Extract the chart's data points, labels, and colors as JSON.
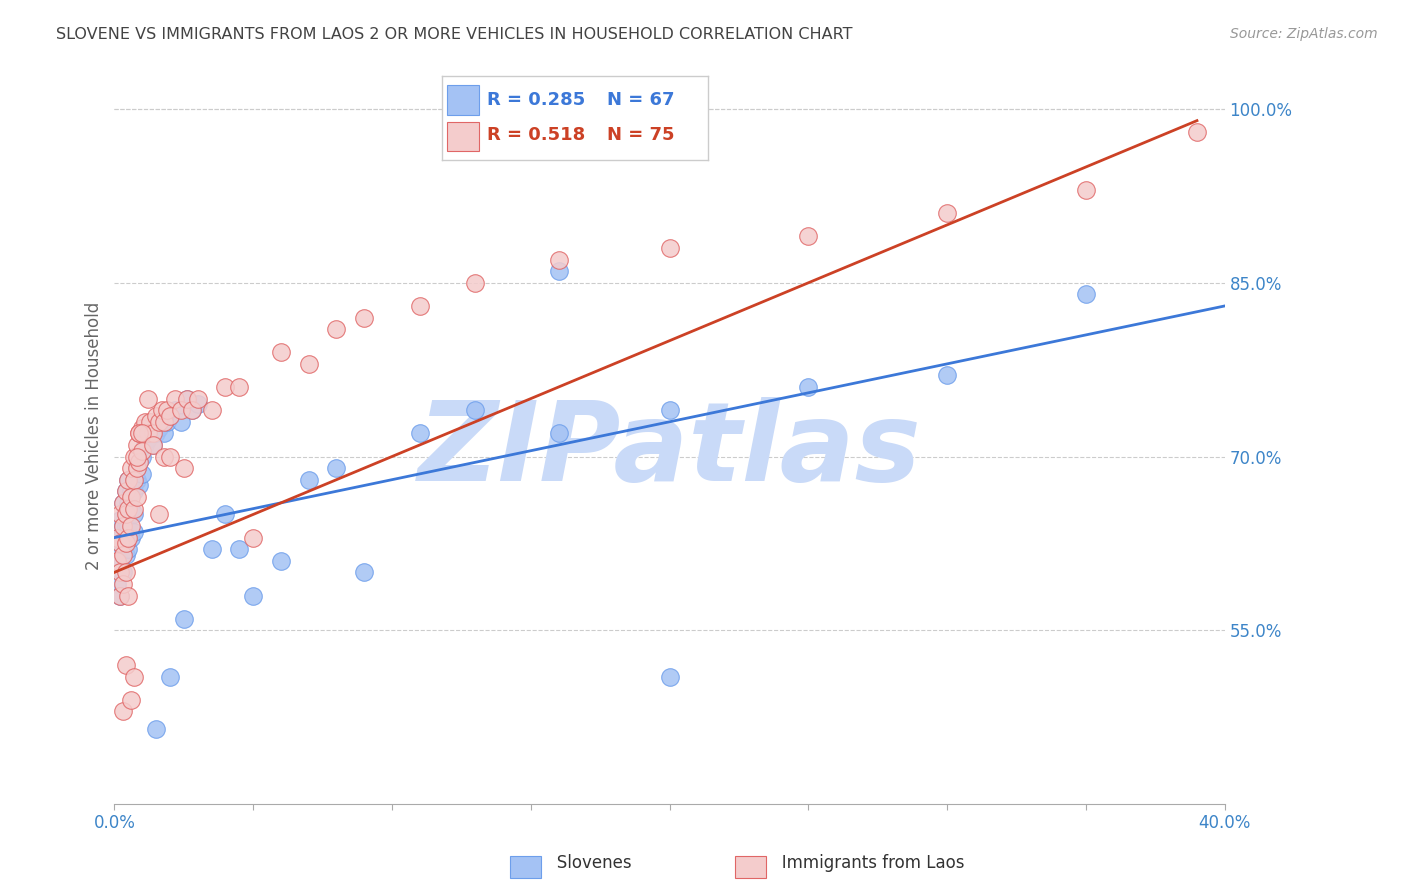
{
  "title": "SLOVENE VS IMMIGRANTS FROM LAOS 2 OR MORE VEHICLES IN HOUSEHOLD CORRELATION CHART",
  "source": "Source: ZipAtlas.com",
  "ylabel": "2 or more Vehicles in Household",
  "xlim": [
    0.0,
    0.4
  ],
  "ylim": [
    0.4,
    1.035
  ],
  "xticks": [
    0.0,
    0.05,
    0.1,
    0.15,
    0.2,
    0.25,
    0.3,
    0.35,
    0.4
  ],
  "xtick_labels": [
    "0.0%",
    "",
    "",
    "",
    "",
    "",
    "",
    "",
    "40.0%"
  ],
  "yticks_right": [
    0.55,
    0.7,
    0.85,
    1.0
  ],
  "ytick_labels_right": [
    "55.0%",
    "70.0%",
    "85.0%",
    "100.0%"
  ],
  "blue_color": "#a4c2f4",
  "pink_color": "#f4cccc",
  "blue_edge_color": "#6d9eeb",
  "pink_edge_color": "#e06666",
  "blue_line_color": "#3c78d8",
  "pink_line_color": "#cc4125",
  "watermark": "ZIPatlas",
  "watermark_color": "#c9daf8",
  "background_color": "#ffffff",
  "grid_color": "#cccccc",
  "title_color": "#434343",
  "axis_label_color": "#3d85c8",
  "legend_r_blue": "R = 0.285",
  "legend_n_blue": "N = 67",
  "legend_r_pink": "R = 0.518",
  "legend_n_pink": "N = 75",
  "blue_trendline": [
    0.0,
    0.4,
    0.63,
    0.83
  ],
  "pink_trendline": [
    0.0,
    0.39,
    0.6,
    0.99
  ],
  "slovenes_x": [
    0.001,
    0.001,
    0.001,
    0.002,
    0.002,
    0.002,
    0.002,
    0.003,
    0.003,
    0.003,
    0.003,
    0.004,
    0.004,
    0.004,
    0.004,
    0.005,
    0.005,
    0.005,
    0.005,
    0.006,
    0.006,
    0.006,
    0.007,
    0.007,
    0.007,
    0.007,
    0.008,
    0.008,
    0.009,
    0.009,
    0.01,
    0.01,
    0.011,
    0.012,
    0.013,
    0.014,
    0.015,
    0.016,
    0.017,
    0.018,
    0.019,
    0.02,
    0.022,
    0.024,
    0.026,
    0.028,
    0.03,
    0.035,
    0.04,
    0.045,
    0.05,
    0.06,
    0.07,
    0.08,
    0.09,
    0.11,
    0.13,
    0.16,
    0.2,
    0.25,
    0.3,
    0.35,
    0.16,
    0.2,
    0.015,
    0.02,
    0.025
  ],
  "slovenes_y": [
    0.63,
    0.61,
    0.59,
    0.645,
    0.63,
    0.61,
    0.58,
    0.66,
    0.64,
    0.62,
    0.6,
    0.67,
    0.65,
    0.64,
    0.615,
    0.68,
    0.66,
    0.64,
    0.62,
    0.67,
    0.655,
    0.63,
    0.68,
    0.67,
    0.65,
    0.635,
    0.69,
    0.68,
    0.695,
    0.675,
    0.7,
    0.685,
    0.71,
    0.715,
    0.72,
    0.71,
    0.72,
    0.725,
    0.73,
    0.72,
    0.73,
    0.735,
    0.74,
    0.73,
    0.75,
    0.74,
    0.745,
    0.62,
    0.65,
    0.62,
    0.58,
    0.61,
    0.68,
    0.69,
    0.6,
    0.72,
    0.74,
    0.72,
    0.74,
    0.76,
    0.77,
    0.84,
    0.86,
    0.51,
    0.465,
    0.51,
    0.56
  ],
  "laos_x": [
    0.001,
    0.001,
    0.002,
    0.002,
    0.002,
    0.002,
    0.003,
    0.003,
    0.003,
    0.003,
    0.004,
    0.004,
    0.004,
    0.004,
    0.005,
    0.005,
    0.005,
    0.006,
    0.006,
    0.006,
    0.007,
    0.007,
    0.007,
    0.008,
    0.008,
    0.008,
    0.009,
    0.009,
    0.01,
    0.01,
    0.011,
    0.012,
    0.013,
    0.014,
    0.015,
    0.016,
    0.017,
    0.018,
    0.019,
    0.02,
    0.022,
    0.024,
    0.026,
    0.028,
    0.03,
    0.035,
    0.04,
    0.045,
    0.05,
    0.06,
    0.07,
    0.08,
    0.09,
    0.11,
    0.13,
    0.16,
    0.2,
    0.25,
    0.3,
    0.35,
    0.39,
    0.003,
    0.004,
    0.005,
    0.006,
    0.007,
    0.008,
    0.009,
    0.01,
    0.012,
    0.014,
    0.016,
    0.018,
    0.02,
    0.025
  ],
  "laos_y": [
    0.63,
    0.61,
    0.65,
    0.625,
    0.6,
    0.58,
    0.66,
    0.64,
    0.615,
    0.59,
    0.67,
    0.65,
    0.625,
    0.6,
    0.68,
    0.655,
    0.63,
    0.69,
    0.665,
    0.64,
    0.7,
    0.68,
    0.655,
    0.71,
    0.69,
    0.665,
    0.72,
    0.695,
    0.725,
    0.705,
    0.73,
    0.72,
    0.73,
    0.72,
    0.735,
    0.73,
    0.74,
    0.73,
    0.74,
    0.735,
    0.75,
    0.74,
    0.75,
    0.74,
    0.75,
    0.74,
    0.76,
    0.76,
    0.63,
    0.79,
    0.78,
    0.81,
    0.82,
    0.83,
    0.85,
    0.87,
    0.88,
    0.89,
    0.91,
    0.93,
    0.98,
    0.48,
    0.52,
    0.58,
    0.49,
    0.51,
    0.7,
    0.72,
    0.72,
    0.75,
    0.71,
    0.65,
    0.7,
    0.7,
    0.69
  ]
}
